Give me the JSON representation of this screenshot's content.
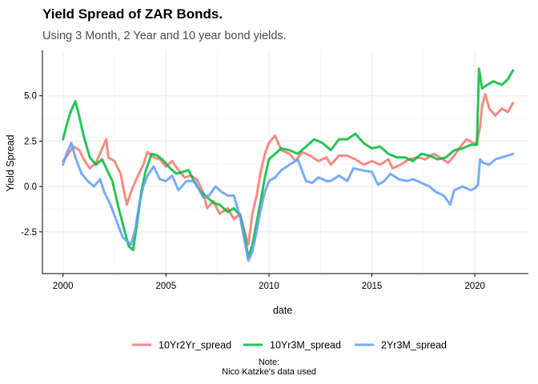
{
  "chart_data": {
    "type": "line",
    "title": "Yield Spread of ZAR Bonds.",
    "subtitle": "Using 3 Month, 2 Year and 10 year bond yields.",
    "xlabel": "date",
    "ylabel": "Yield Spread",
    "xlim": [
      1999.0,
      2022.6
    ],
    "ylim": [
      -4.8,
      7.5
    ],
    "x_ticks": [
      2000,
      2005,
      2010,
      2015,
      2020
    ],
    "x_tick_labels": [
      "2000",
      "2005",
      "2010",
      "2015",
      "2020"
    ],
    "y_ticks": [
      -2.5,
      0,
      2.5,
      5
    ],
    "y_tick_labels": [
      "-2.5",
      "0.0",
      "2.5",
      "5.0"
    ],
    "grid": true,
    "legend_position": "bottom",
    "series": [
      {
        "name": "10Yr2Yr_spread",
        "color": "#F8766D",
        "points": [
          [
            2000.0,
            1.4
          ],
          [
            2000.5,
            2.2
          ],
          [
            2000.8,
            2.0
          ],
          [
            2001.0,
            1.5
          ],
          [
            2001.3,
            1.0
          ],
          [
            2001.6,
            1.3
          ],
          [
            2001.9,
            2.1
          ],
          [
            2002.1,
            2.6
          ],
          [
            2002.2,
            1.6
          ],
          [
            2002.5,
            1.4
          ],
          [
            2002.8,
            0.7
          ],
          [
            2003.0,
            -0.5
          ],
          [
            2003.1,
            -1.0
          ],
          [
            2003.3,
            -0.3
          ],
          [
            2003.6,
            0.5
          ],
          [
            2003.9,
            1.2
          ],
          [
            2004.1,
            1.9
          ],
          [
            2004.4,
            1.6
          ],
          [
            2004.7,
            1.5
          ],
          [
            2005.0,
            1.1
          ],
          [
            2005.3,
            1.4
          ],
          [
            2005.6,
            0.9
          ],
          [
            2005.9,
            0.5
          ],
          [
            2006.2,
            0.6
          ],
          [
            2006.5,
            0.4
          ],
          [
            2006.8,
            -0.3
          ],
          [
            2007.0,
            -1.2
          ],
          [
            2007.3,
            -0.8
          ],
          [
            2007.6,
            -1.5
          ],
          [
            2008.0,
            -1.2
          ],
          [
            2008.3,
            -1.8
          ],
          [
            2008.6,
            -1.5
          ],
          [
            2008.8,
            -2.4
          ],
          [
            2009.0,
            -3.2
          ],
          [
            2009.2,
            -1.5
          ],
          [
            2009.4,
            -0.5
          ],
          [
            2009.6,
            0.8
          ],
          [
            2009.8,
            1.8
          ],
          [
            2010.0,
            2.4
          ],
          [
            2010.3,
            2.8
          ],
          [
            2010.6,
            2.0
          ],
          [
            2011.0,
            1.8
          ],
          [
            2011.3,
            1.4
          ],
          [
            2011.6,
            1.9
          ],
          [
            2012.0,
            1.7
          ],
          [
            2012.4,
            1.4
          ],
          [
            2012.8,
            1.6
          ],
          [
            2013.0,
            1.2
          ],
          [
            2013.4,
            1.7
          ],
          [
            2013.8,
            1.7
          ],
          [
            2014.2,
            1.5
          ],
          [
            2014.6,
            1.2
          ],
          [
            2015.0,
            1.4
          ],
          [
            2015.4,
            1.2
          ],
          [
            2015.8,
            1.5
          ],
          [
            2016.0,
            1.0
          ],
          [
            2016.4,
            1.2
          ],
          [
            2016.8,
            1.5
          ],
          [
            2017.2,
            1.6
          ],
          [
            2017.6,
            1.5
          ],
          [
            2018.0,
            1.8
          ],
          [
            2018.3,
            1.6
          ],
          [
            2018.7,
            1.3
          ],
          [
            2019.0,
            1.7
          ],
          [
            2019.3,
            2.2
          ],
          [
            2019.6,
            2.6
          ],
          [
            2019.9,
            2.4
          ],
          [
            2020.1,
            2.4
          ],
          [
            2020.25,
            3.3
          ],
          [
            2020.35,
            4.4
          ],
          [
            2020.5,
            5.1
          ],
          [
            2020.7,
            4.3
          ],
          [
            2021.0,
            3.9
          ],
          [
            2021.3,
            4.3
          ],
          [
            2021.6,
            4.1
          ],
          [
            2021.85,
            4.6
          ]
        ]
      },
      {
        "name": "10Yr3M_spread",
        "color": "#00BA38",
        "points": [
          [
            2000.0,
            2.6
          ],
          [
            2000.2,
            3.5
          ],
          [
            2000.4,
            4.2
          ],
          [
            2000.6,
            4.7
          ],
          [
            2000.8,
            3.8
          ],
          [
            2001.0,
            2.8
          ],
          [
            2001.3,
            1.6
          ],
          [
            2001.6,
            1.2
          ],
          [
            2001.9,
            1.5
          ],
          [
            2002.1,
            1.0
          ],
          [
            2002.4,
            0.3
          ],
          [
            2002.7,
            -1.2
          ],
          [
            2003.0,
            -2.5
          ],
          [
            2003.2,
            -3.3
          ],
          [
            2003.4,
            -3.5
          ],
          [
            2003.6,
            -2.0
          ],
          [
            2003.8,
            -0.3
          ],
          [
            2004.0,
            0.8
          ],
          [
            2004.3,
            1.8
          ],
          [
            2004.6,
            1.7
          ],
          [
            2004.9,
            1.4
          ],
          [
            2005.2,
            1.0
          ],
          [
            2005.5,
            0.7
          ],
          [
            2005.8,
            0.8
          ],
          [
            2006.1,
            0.9
          ],
          [
            2006.4,
            0.2
          ],
          [
            2006.7,
            -0.3
          ],
          [
            2007.0,
            -0.6
          ],
          [
            2007.3,
            -0.9
          ],
          [
            2007.6,
            -1.0
          ],
          [
            2008.0,
            -1.4
          ],
          [
            2008.3,
            -1.2
          ],
          [
            2008.6,
            -1.6
          ],
          [
            2008.8,
            -2.6
          ],
          [
            2009.0,
            -3.9
          ],
          [
            2009.2,
            -3.2
          ],
          [
            2009.4,
            -2.0
          ],
          [
            2009.6,
            -0.8
          ],
          [
            2009.8,
            0.5
          ],
          [
            2010.0,
            1.5
          ],
          [
            2010.3,
            1.8
          ],
          [
            2010.6,
            2.1
          ],
          [
            2011.0,
            2.0
          ],
          [
            2011.4,
            1.8
          ],
          [
            2011.8,
            2.2
          ],
          [
            2012.2,
            2.6
          ],
          [
            2012.6,
            2.4
          ],
          [
            2013.0,
            2.0
          ],
          [
            2013.4,
            2.6
          ],
          [
            2013.8,
            2.6
          ],
          [
            2014.2,
            2.9
          ],
          [
            2014.6,
            2.4
          ],
          [
            2015.0,
            2.1
          ],
          [
            2015.4,
            2.2
          ],
          [
            2015.8,
            1.8
          ],
          [
            2016.2,
            1.6
          ],
          [
            2016.6,
            1.6
          ],
          [
            2017.0,
            1.4
          ],
          [
            2017.4,
            1.8
          ],
          [
            2017.8,
            1.7
          ],
          [
            2018.2,
            1.5
          ],
          [
            2018.6,
            1.6
          ],
          [
            2019.0,
            2.0
          ],
          [
            2019.4,
            2.1
          ],
          [
            2019.8,
            2.3
          ],
          [
            2020.1,
            2.3
          ],
          [
            2020.2,
            6.5
          ],
          [
            2020.35,
            5.4
          ],
          [
            2020.6,
            5.6
          ],
          [
            2020.9,
            5.8
          ],
          [
            2021.3,
            5.6
          ],
          [
            2021.6,
            5.9
          ],
          [
            2021.85,
            6.4
          ]
        ]
      },
      {
        "name": "2Yr3M_spread",
        "color": "#619CFF",
        "points": [
          [
            2000.0,
            1.2
          ],
          [
            2000.2,
            1.9
          ],
          [
            2000.4,
            2.4
          ],
          [
            2000.6,
            1.6
          ],
          [
            2000.9,
            0.7
          ],
          [
            2001.2,
            0.3
          ],
          [
            2001.5,
            0.0
          ],
          [
            2001.8,
            0.4
          ],
          [
            2002.0,
            -0.3
          ],
          [
            2002.3,
            -1.0
          ],
          [
            2002.6,
            -1.9
          ],
          [
            2002.9,
            -2.8
          ],
          [
            2003.1,
            -3.0
          ],
          [
            2003.3,
            -3.2
          ],
          [
            2003.5,
            -2.4
          ],
          [
            2003.7,
            -1.0
          ],
          [
            2003.9,
            0.0
          ],
          [
            2004.1,
            0.6
          ],
          [
            2004.4,
            1.1
          ],
          [
            2004.7,
            0.4
          ],
          [
            2005.0,
            0.3
          ],
          [
            2005.3,
            0.6
          ],
          [
            2005.6,
            -0.2
          ],
          [
            2006.0,
            0.3
          ],
          [
            2006.4,
            0.3
          ],
          [
            2006.8,
            -0.6
          ],
          [
            2007.1,
            -0.5
          ],
          [
            2007.4,
            0.0
          ],
          [
            2007.7,
            -0.3
          ],
          [
            2008.0,
            -0.5
          ],
          [
            2008.3,
            -0.5
          ],
          [
            2008.6,
            -1.7
          ],
          [
            2008.8,
            -2.9
          ],
          [
            2009.0,
            -4.1
          ],
          [
            2009.2,
            -3.6
          ],
          [
            2009.4,
            -2.5
          ],
          [
            2009.6,
            -1.3
          ],
          [
            2009.8,
            -0.3
          ],
          [
            2010.0,
            0.3
          ],
          [
            2010.3,
            0.5
          ],
          [
            2010.6,
            0.9
          ],
          [
            2011.0,
            1.2
          ],
          [
            2011.4,
            1.5
          ],
          [
            2011.8,
            0.3
          ],
          [
            2012.1,
            0.2
          ],
          [
            2012.4,
            0.5
          ],
          [
            2012.8,
            0.3
          ],
          [
            2013.0,
            0.3
          ],
          [
            2013.4,
            0.6
          ],
          [
            2013.8,
            0.3
          ],
          [
            2014.1,
            1.0
          ],
          [
            2014.5,
            0.9
          ],
          [
            2015.0,
            0.8
          ],
          [
            2015.3,
            0.1
          ],
          [
            2015.6,
            0.3
          ],
          [
            2015.9,
            0.7
          ],
          [
            2016.3,
            0.4
          ],
          [
            2016.7,
            0.3
          ],
          [
            2017.0,
            0.4
          ],
          [
            2017.4,
            0.2
          ],
          [
            2017.8,
            0.0
          ],
          [
            2018.1,
            -0.3
          ],
          [
            2018.5,
            -0.5
          ],
          [
            2018.8,
            -1.0
          ],
          [
            2019.0,
            -0.2
          ],
          [
            2019.4,
            0.0
          ],
          [
            2019.8,
            -0.2
          ],
          [
            2020.0,
            -0.1
          ],
          [
            2020.15,
            0.1
          ],
          [
            2020.25,
            1.5
          ],
          [
            2020.4,
            1.3
          ],
          [
            2020.7,
            1.2
          ],
          [
            2021.0,
            1.5
          ],
          [
            2021.3,
            1.6
          ],
          [
            2021.6,
            1.7
          ],
          [
            2021.85,
            1.8
          ]
        ]
      }
    ]
  },
  "caption": {
    "line1": "Note:",
    "line2": "Nico Katzke's data used"
  }
}
